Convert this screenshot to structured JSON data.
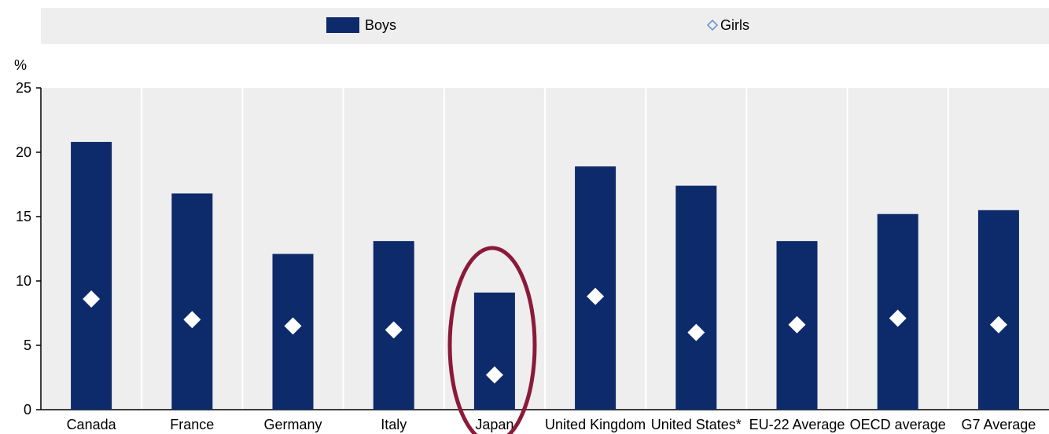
{
  "chart_data": {
    "type": "bar",
    "ylabel": "%",
    "ylim": [
      0,
      25
    ],
    "yticks": [
      0,
      5,
      10,
      15,
      20,
      25
    ],
    "grid": "vertical separators between categories",
    "legend_position": "top",
    "highlighted_category": "Japan",
    "categories": [
      "Canada",
      "France",
      "Germany",
      "Italy",
      "Japan",
      "United Kingdom",
      "United States*",
      "EU-22 Average",
      "OECD average",
      "G7 Average"
    ],
    "series": [
      {
        "name": "Boys",
        "mark": "bar",
        "color": "#0d2a6b",
        "values": [
          20.8,
          16.8,
          12.1,
          13.1,
          9.1,
          18.9,
          17.4,
          13.1,
          15.2,
          15.5
        ]
      },
      {
        "name": "Girls",
        "mark": "diamond",
        "color": "#ffffff",
        "legend_color": "#5b8fd4",
        "values": [
          8.6,
          7.0,
          6.5,
          6.2,
          2.7,
          8.8,
          6.0,
          6.6,
          7.1,
          6.6
        ]
      }
    ]
  },
  "colors": {
    "highlight_ring": "#8b1a3a"
  }
}
